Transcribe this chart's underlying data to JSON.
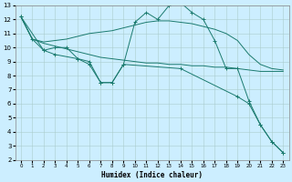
{
  "xlabel": "Humidex (Indice chaleur)",
  "bg_color": "#cceeff",
  "grid_color": "#aacccc",
  "line_color": "#1a7a6e",
  "xlim": [
    -0.5,
    23.5
  ],
  "ylim": [
    2,
    13
  ],
  "xticks": [
    0,
    1,
    2,
    3,
    4,
    5,
    6,
    7,
    8,
    9,
    10,
    11,
    12,
    13,
    14,
    15,
    16,
    17,
    18,
    19,
    20,
    21,
    22,
    23
  ],
  "yticks": [
    2,
    3,
    4,
    5,
    6,
    7,
    8,
    9,
    10,
    11,
    12,
    13
  ],
  "series": [
    {
      "x": [
        0,
        1,
        2,
        3,
        4,
        5,
        6,
        7,
        8,
        9,
        10,
        11,
        12,
        13,
        14,
        15,
        16,
        17,
        18,
        19,
        20,
        21,
        22,
        23
      ],
      "y": [
        12.2,
        10.6,
        9.8,
        10.0,
        10.0,
        9.2,
        9.0,
        7.5,
        7.5,
        8.8,
        11.8,
        12.5,
        12.0,
        13.0,
        13.2,
        12.5,
        12.0,
        10.5,
        8.5,
        8.5,
        6.2,
        4.5,
        3.3,
        2.5
      ],
      "has_markers": true
    },
    {
      "x": [
        0,
        1,
        2,
        3,
        4,
        5,
        6,
        7,
        8,
        9,
        10,
        11,
        12,
        13,
        14,
        15,
        16,
        17,
        18,
        19,
        20,
        21,
        22,
        23
      ],
      "y": [
        12.2,
        10.6,
        10.4,
        10.5,
        10.6,
        10.8,
        11.0,
        11.1,
        11.2,
        11.4,
        11.6,
        11.8,
        11.9,
        11.9,
        11.8,
        11.7,
        11.5,
        11.3,
        11.0,
        10.5,
        9.5,
        8.8,
        8.5,
        8.4
      ],
      "has_markers": false
    },
    {
      "x": [
        0,
        1,
        2,
        3,
        4,
        5,
        6,
        7,
        8,
        9,
        10,
        11,
        12,
        13,
        14,
        15,
        16,
        17,
        18,
        19,
        20,
        21,
        22,
        23
      ],
      "y": [
        12.2,
        10.6,
        10.3,
        10.1,
        9.9,
        9.7,
        9.5,
        9.3,
        9.2,
        9.1,
        9.0,
        8.9,
        8.9,
        8.8,
        8.8,
        8.7,
        8.7,
        8.6,
        8.6,
        8.5,
        8.4,
        8.3,
        8.3,
        8.3
      ],
      "has_markers": false
    },
    {
      "x": [
        0,
        2,
        3,
        5,
        6,
        7,
        8,
        9,
        14,
        19,
        20,
        21,
        22,
        23
      ],
      "y": [
        12.2,
        9.8,
        9.5,
        9.2,
        8.8,
        7.5,
        7.5,
        8.8,
        8.5,
        6.5,
        6.0,
        4.5,
        3.3,
        2.5
      ],
      "has_markers": true
    }
  ]
}
